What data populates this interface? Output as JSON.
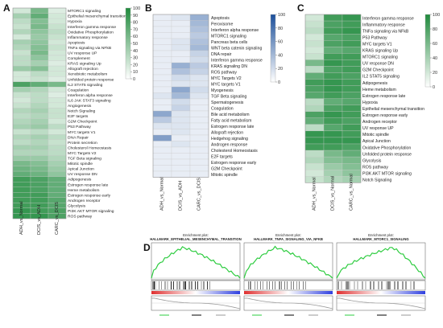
{
  "chart_data": [
    {
      "type": "heatmap",
      "panel_label": "A",
      "columns": [
        "ADH_vs_Normal",
        "DCIS_vs_ADH",
        "CARC_vs_DCIS"
      ],
      "rows": [
        "MTORC1 signaling",
        "Epithelial mesenchymal transition",
        "Hypoxia",
        "Interferon gamma response",
        "Oxidative Phosphorylation",
        "Inflammatory response",
        "Apoptosis",
        "TNFa signaling via NFkB",
        "UV response UP",
        "Complement",
        "KRAS signaling Up",
        "Allograft rejection",
        "Xenobiotic metabolism",
        "Unfolded protein response",
        "IL2 STAT5 signaling",
        "Coagulation",
        "Interferon alpha response",
        "IL6 JAK STAT3 signaling",
        "Angiogenesis",
        "Notch Signaling",
        "E2F targets",
        "G2M Checkpoint",
        "P53 Pathway",
        "MYC targets V1",
        "DNA Repair",
        "Protein secretion",
        "Cholesterol Homeostasis",
        "MYC Targets V2",
        "TGF Beta signaling",
        "Mitotic spindle",
        "Apical Junction",
        "UV response DN",
        "Adipogenesis",
        "Estrogen response late",
        "Heme metabolism",
        "Estrogen response early",
        "Androgen receptor",
        "Glycolysis",
        "PI3K AKT MTOR signaling",
        "ROS pathway"
      ],
      "values": [
        [
          20,
          60,
          15
        ],
        [
          40,
          70,
          20
        ],
        [
          30,
          55,
          20
        ],
        [
          25,
          60,
          25
        ],
        [
          35,
          50,
          30
        ],
        [
          20,
          45,
          25
        ],
        [
          40,
          50,
          20
        ],
        [
          35,
          55,
          25
        ],
        [
          25,
          60,
          20
        ],
        [
          30,
          50,
          20
        ],
        [
          30,
          40,
          15
        ],
        [
          45,
          55,
          20
        ],
        [
          20,
          30,
          20
        ],
        [
          20,
          25,
          15
        ],
        [
          80,
          70,
          60
        ],
        [
          40,
          35,
          20
        ],
        [
          25,
          30,
          15
        ],
        [
          20,
          30,
          20
        ],
        [
          25,
          35,
          20
        ],
        [
          35,
          40,
          25
        ],
        [
          30,
          35,
          25
        ],
        [
          35,
          40,
          20
        ],
        [
          40,
          45,
          30
        ],
        [
          25,
          30,
          20
        ],
        [
          35,
          40,
          30
        ],
        [
          30,
          35,
          25
        ],
        [
          40,
          40,
          30
        ],
        [
          35,
          35,
          30
        ],
        [
          45,
          45,
          35
        ],
        [
          60,
          55,
          40
        ],
        [
          65,
          60,
          45
        ],
        [
          70,
          65,
          50
        ],
        [
          85,
          80,
          70
        ],
        [
          85,
          80,
          70
        ],
        [
          85,
          80,
          70
        ],
        [
          85,
          85,
          70
        ],
        [
          85,
          85,
          75
        ],
        [
          85,
          85,
          75
        ],
        [
          90,
          85,
          80
        ],
        [
          90,
          90,
          80
        ]
      ],
      "colorbar": {
        "min": 0,
        "max": 100,
        "ticks": [
          0,
          10,
          20,
          30,
          40,
          50,
          60,
          70,
          80,
          90,
          100
        ],
        "low_color": "#ffffff",
        "high_color": "#1f8a3c"
      }
    },
    {
      "type": "heatmap",
      "panel_label": "B",
      "columns": [
        "ADH_vs_Normal",
        "DCIS_vs_ADH",
        "CARC_vs_DCIS"
      ],
      "rows": [
        "Apoptosis",
        "Peroxisome",
        "Interferon alpha response",
        "MTORC1 signaling",
        "Pancreas beta cells",
        "WNT beta catenin signaling",
        "DNA repair",
        "Interferon gamma response",
        "KRAS signaling DN",
        "ROS pathway",
        "MYC Targets V2",
        "MYC targets V1",
        "Myogenesis",
        "TGF Beta signaling",
        "Spermatogenesis",
        "Coagulation",
        "Bile acid metabolism",
        "Fatty acid metabolism",
        "Estrogen response late",
        "Allograft rejection",
        "Hedgehog signaling",
        "Androgen response",
        "Cholesterol Homeostasis",
        "E2F targets",
        "Estrogen response early",
        "G2M Checkpoint",
        "Mitotic spindle"
      ],
      "values": [
        [
          10,
          15,
          45
        ],
        [
          10,
          10,
          40
        ],
        [
          10,
          10,
          35
        ],
        [
          10,
          10,
          30
        ],
        [
          10,
          15,
          35
        ],
        [
          10,
          15,
          40
        ],
        [
          10,
          10,
          25
        ],
        [
          10,
          10,
          20
        ],
        [
          10,
          45,
          30
        ],
        [
          10,
          35,
          25
        ],
        [
          10,
          20,
          15
        ],
        [
          10,
          15,
          15
        ],
        [
          10,
          50,
          20
        ],
        [
          15,
          40,
          15
        ],
        [
          10,
          20,
          10
        ],
        [
          10,
          25,
          10
        ],
        [
          50,
          15,
          10
        ],
        [
          30,
          15,
          10
        ],
        [
          15,
          15,
          10
        ],
        [
          10,
          15,
          10
        ],
        [
          55,
          10,
          10
        ],
        [
          10,
          15,
          10
        ],
        [
          10,
          10,
          10
        ],
        [
          10,
          10,
          10
        ],
        [
          10,
          10,
          10
        ],
        [
          10,
          10,
          10
        ],
        [
          10,
          10,
          10
        ]
      ],
      "colorbar": {
        "min": 0,
        "max": 100,
        "ticks": [
          0,
          20,
          40,
          60,
          80,
          100
        ],
        "low_color": "#ffffff",
        "high_color": "#1b4f9a"
      }
    },
    {
      "type": "heatmap",
      "panel_label": "C",
      "columns": [
        "ADH_vs_Normal",
        "DCIS_vs_Normal",
        "CARC_vs_Normal"
      ],
      "rows": [
        "Interferon gamma response",
        "Inflammatory response",
        "TNFa signaling via NFkB",
        "P53 Pathway",
        "MYC targets V1",
        "KRAS signaling Up",
        "MTORC1 signaling",
        "UV response DN",
        "G2M Checkpoint",
        "IL2 STAT5 signaling",
        "Adipogenesis",
        "Heme metabolism",
        "Estrogen response late",
        "Hypoxia",
        "Epithelial mesenchymal transition",
        "Estrogen response early",
        "Androgen receptor",
        "UV response UP",
        "Mitotic spindle",
        "Apical Junction",
        "Oxidative Phosphorylation",
        "Unfolded protein response",
        "Glycolysis",
        "ROS pathway",
        "PI3K AKT MTOR signaling",
        "Notch Signaling"
      ],
      "values": [
        [
          20,
          85,
          90
        ],
        [
          25,
          80,
          85
        ],
        [
          30,
          85,
          90
        ],
        [
          20,
          75,
          80
        ],
        [
          25,
          80,
          85
        ],
        [
          20,
          70,
          75
        ],
        [
          25,
          85,
          85
        ],
        [
          60,
          90,
          85
        ],
        [
          30,
          80,
          85
        ],
        [
          70,
          85,
          80
        ],
        [
          85,
          90,
          85
        ],
        [
          80,
          90,
          85
        ],
        [
          75,
          85,
          80
        ],
        [
          30,
          70,
          75
        ],
        [
          35,
          80,
          85
        ],
        [
          80,
          90,
          85
        ],
        [
          70,
          85,
          80
        ],
        [
          30,
          75,
          85
        ],
        [
          90,
          90,
          85
        ],
        [
          90,
          90,
          90
        ],
        [
          85,
          85,
          80
        ],
        [
          30,
          60,
          70
        ],
        [
          35,
          55,
          60
        ],
        [
          25,
          45,
          55
        ],
        [
          20,
          40,
          50
        ],
        [
          25,
          35,
          40
        ]
      ],
      "colorbar": {
        "min": 0,
        "max": 100,
        "ticks": [
          0,
          20,
          40,
          60,
          80,
          100
        ],
        "low_color": "#ffffff",
        "high_color": "#1f8a3c"
      }
    },
    {
      "type": "line",
      "panel_label": "D",
      "plots": [
        {
          "title_line1": "Enrichment plot:",
          "title_line2": "HALLMARK_EPITHELIAL_MESENCHYMAL_TRANSITION"
        },
        {
          "title_line1": "Enrichment plot:",
          "title_line2": "HALLMARK_TNFA_SIGNALING_VIA_NFKB"
        },
        {
          "title_line1": "Enrichment plot:",
          "title_line2": "HALLMARK_MTORC1_SIGNALING"
        }
      ]
    }
  ]
}
